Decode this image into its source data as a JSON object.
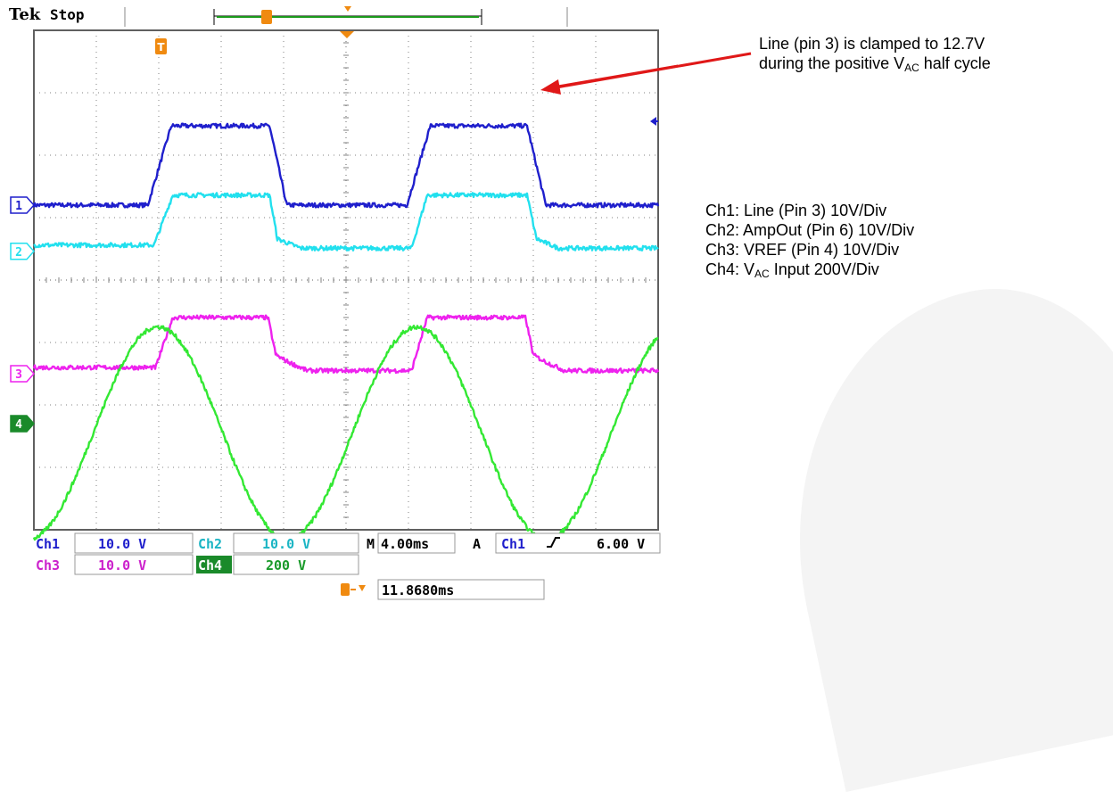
{
  "header": {
    "brand": "Tek",
    "mode": "Stop",
    "trigger_marker": "T"
  },
  "annotation": {
    "line1": "Line (pin 3) is clamped to 12.7V",
    "line2_pre": "during the positive V",
    "line2_sub": "AC",
    "line2_post": " half cycle"
  },
  "legend": {
    "ch1": "Ch1: Line (Pin 3) 10V/Div",
    "ch2": "Ch2: AmpOut (Pin 6) 10V/Div",
    "ch3": "Ch3: VREF (Pin 4) 10V/Div",
    "ch4_pre": "Ch4: V",
    "ch4_sub": "AC",
    "ch4_post": " Input 200V/Div"
  },
  "readout": {
    "ch1_label": "Ch1",
    "ch1_scale": "10.0 V",
    "ch2_label": "Ch2",
    "ch2_scale": "10.0 V",
    "ch3_label": "Ch3",
    "ch3_scale": "10.0 V",
    "ch4_label": "Ch4",
    "ch4_scale": "200 V",
    "timebase_prefix": "M",
    "timebase": "4.00ms",
    "trigger_mode": "A",
    "trigger_source": "Ch1",
    "trigger_level": "6.00 V",
    "trigger_offset": "11.8680ms"
  },
  "colors": {
    "ch1": "#1f1fcc",
    "ch2": "#22e0ee",
    "ch3": "#ee22ee",
    "ch4": "#33e833",
    "ch4_badge": "#1a8a2a",
    "trigger": "#f08a10",
    "arrow": "#e01818",
    "grid": "#808080"
  },
  "chart_data": {
    "type": "line",
    "x_unit": "ms",
    "xlim": [
      0,
      40
    ],
    "ylim": [
      -4,
      4
    ],
    "grid": true,
    "series": [
      {
        "label": "1",
        "offset_div": 1.2,
        "x": [
          0,
          7.3,
          8.8,
          15.1,
          16.2,
          23.9,
          25.4,
          31.6,
          32.8,
          40
        ],
        "y": [
          0,
          0,
          1.27,
          1.27,
          0,
          0,
          1.27,
          1.27,
          0,
          0
        ]
      },
      {
        "label": "2",
        "offset_div": 0.46,
        "x": [
          0,
          7.7,
          8.9,
          15.1,
          15.6,
          17.1,
          24.2,
          25.2,
          31.6,
          32.2,
          33.6,
          40
        ],
        "y": [
          0.1,
          0.1,
          0.9,
          0.9,
          0.2,
          0.05,
          0.05,
          0.9,
          0.9,
          0.2,
          0.05,
          0.05
        ]
      },
      {
        "label": "3",
        "offset_div": -1.5,
        "x": [
          0,
          7.8,
          8.9,
          15.0,
          15.5,
          16.2,
          17.5,
          24.2,
          25.2,
          31.5,
          32.0,
          32.7,
          34.0,
          40
        ],
        "y": [
          0.1,
          0.1,
          0.9,
          0.9,
          0.3,
          0.2,
          0.05,
          0.05,
          0.9,
          0.9,
          0.3,
          0.2,
          0.05,
          0.05
        ]
      },
      {
        "label": "4",
        "offset_div": -2.3,
        "period_ms": 16.6,
        "phase_ms": 3.8,
        "amplitude_div": 1.7,
        "offset_shift_div": -0.15
      }
    ]
  }
}
